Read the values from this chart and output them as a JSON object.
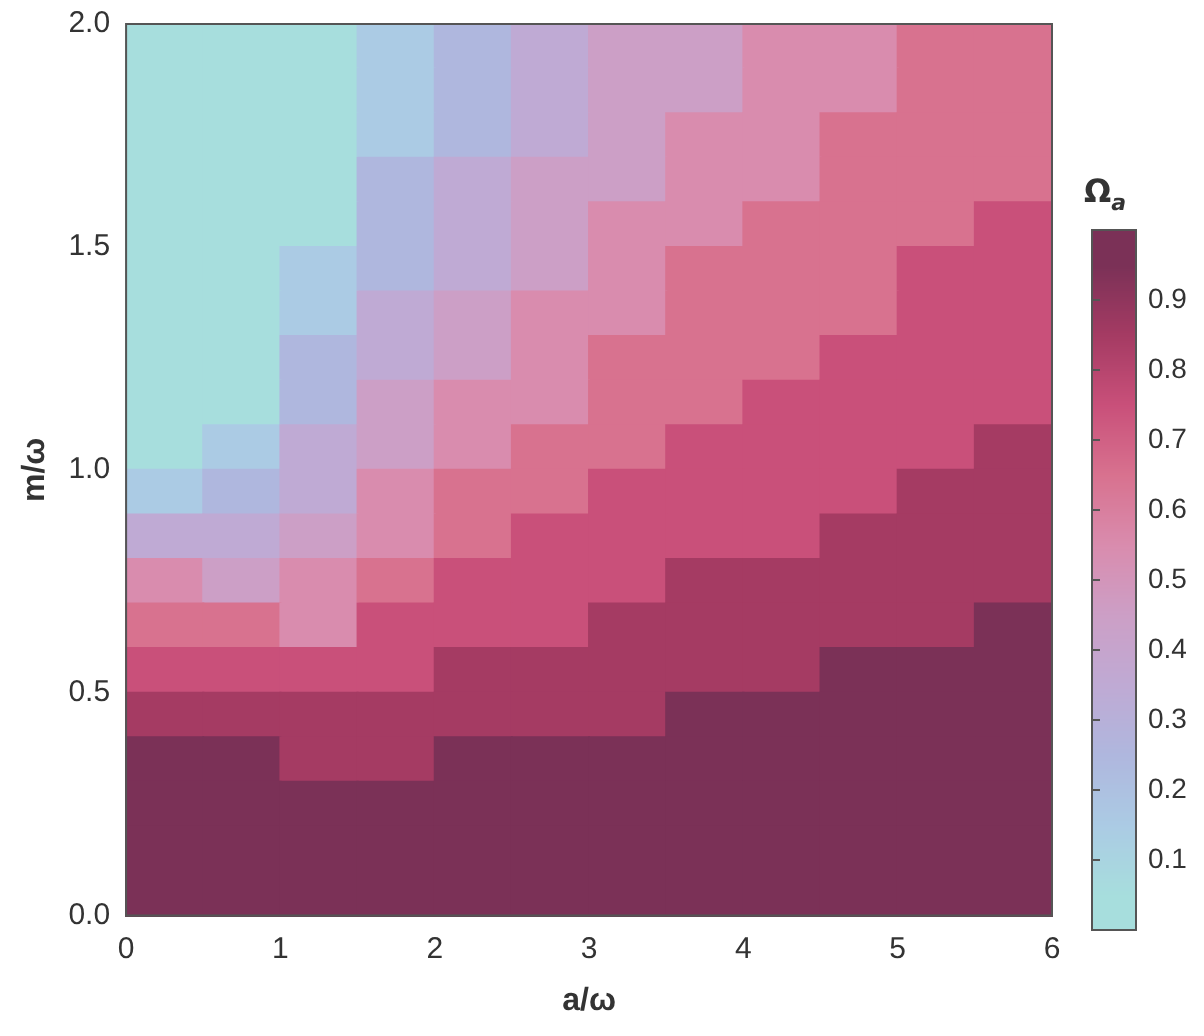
{
  "chart_data": {
    "type": "heatmap",
    "xlabel": "a/ω",
    "ylabel": "m/ω",
    "clabel": "Ω$_{a}$",
    "x": [
      0.25,
      0.75,
      1.25,
      1.75,
      2.25,
      2.75,
      3.25,
      3.75,
      4.25,
      4.75,
      5.25,
      5.75
    ],
    "y": [
      1.95,
      1.85,
      1.75,
      1.65,
      1.55,
      1.45,
      1.35,
      1.25,
      1.15,
      1.05,
      0.95,
      0.85,
      0.75,
      0.65,
      0.55,
      0.45,
      0.35,
      0.25,
      0.15,
      0.05
    ],
    "xlim": [
      0,
      6
    ],
    "xticks": [
      0,
      1,
      2,
      3,
      4,
      5,
      6
    ],
    "ylim": [
      0,
      2
    ],
    "yticks": [
      {
        "value": 0,
        "label": "0.0"
      },
      {
        "value": 0.5,
        "label": "0.5"
      },
      {
        "value": 1,
        "label": "1.0"
      },
      {
        "value": 1.5,
        "label": "1.5"
      },
      {
        "value": 2,
        "label": "2.0"
      }
    ],
    "clim": [
      0,
      1
    ],
    "cticks": [
      0.1,
      0.2,
      0.3,
      0.4,
      0.5,
      0.6,
      0.7,
      0.8,
      0.9
    ],
    "cells": [
      [
        0.05,
        0.05,
        0.05,
        0.15,
        0.25,
        0.35,
        0.45,
        0.45,
        0.55,
        0.55,
        0.65,
        0.65
      ],
      [
        0.05,
        0.05,
        0.05,
        0.15,
        0.25,
        0.35,
        0.45,
        0.45,
        0.55,
        0.55,
        0.65,
        0.65
      ],
      [
        0.05,
        0.05,
        0.05,
        0.15,
        0.25,
        0.35,
        0.45,
        0.55,
        0.55,
        0.65,
        0.65,
        0.65
      ],
      [
        0.05,
        0.05,
        0.05,
        0.25,
        0.35,
        0.45,
        0.45,
        0.55,
        0.55,
        0.65,
        0.65,
        0.65
      ],
      [
        0.05,
        0.05,
        0.05,
        0.25,
        0.35,
        0.45,
        0.55,
        0.55,
        0.65,
        0.65,
        0.65,
        0.75
      ],
      [
        0.05,
        0.05,
        0.15,
        0.25,
        0.35,
        0.45,
        0.55,
        0.65,
        0.65,
        0.65,
        0.75,
        0.75
      ],
      [
        0.05,
        0.05,
        0.15,
        0.35,
        0.45,
        0.55,
        0.55,
        0.65,
        0.65,
        0.65,
        0.75,
        0.75
      ],
      [
        0.05,
        0.05,
        0.25,
        0.35,
        0.45,
        0.55,
        0.65,
        0.65,
        0.65,
        0.75,
        0.75,
        0.75
      ],
      [
        0.05,
        0.05,
        0.25,
        0.45,
        0.55,
        0.55,
        0.65,
        0.65,
        0.75,
        0.75,
        0.75,
        0.75
      ],
      [
        0.05,
        0.15,
        0.35,
        0.45,
        0.55,
        0.65,
        0.65,
        0.75,
        0.75,
        0.75,
        0.75,
        0.85
      ],
      [
        0.15,
        0.25,
        0.35,
        0.55,
        0.65,
        0.65,
        0.75,
        0.75,
        0.75,
        0.75,
        0.85,
        0.85
      ],
      [
        0.35,
        0.35,
        0.45,
        0.55,
        0.65,
        0.75,
        0.75,
        0.75,
        0.75,
        0.85,
        0.85,
        0.85
      ],
      [
        0.55,
        0.45,
        0.55,
        0.65,
        0.75,
        0.75,
        0.75,
        0.85,
        0.85,
        0.85,
        0.85,
        0.85
      ],
      [
        0.65,
        0.65,
        0.55,
        0.75,
        0.75,
        0.75,
        0.85,
        0.85,
        0.85,
        0.85,
        0.85,
        0.95
      ],
      [
        0.75,
        0.75,
        0.75,
        0.75,
        0.85,
        0.85,
        0.85,
        0.85,
        0.85,
        0.95,
        0.95,
        0.95
      ],
      [
        0.85,
        0.85,
        0.85,
        0.85,
        0.85,
        0.85,
        0.85,
        0.95,
        0.95,
        0.95,
        0.95,
        0.95
      ],
      [
        0.95,
        0.95,
        0.85,
        0.85,
        0.95,
        0.95,
        0.95,
        0.95,
        0.95,
        0.95,
        0.95,
        0.95
      ],
      [
        0.95,
        0.95,
        0.95,
        0.95,
        0.95,
        0.95,
        0.95,
        0.95,
        0.95,
        0.95,
        0.95,
        0.95
      ],
      [
        0.95,
        0.95,
        0.95,
        0.95,
        0.95,
        0.95,
        0.95,
        0.95,
        0.95,
        0.95,
        0.95,
        0.95
      ],
      [
        0.95,
        0.95,
        0.95,
        0.95,
        0.95,
        0.95,
        0.95,
        0.95,
        0.95,
        0.95,
        0.95,
        0.95
      ]
    ]
  }
}
